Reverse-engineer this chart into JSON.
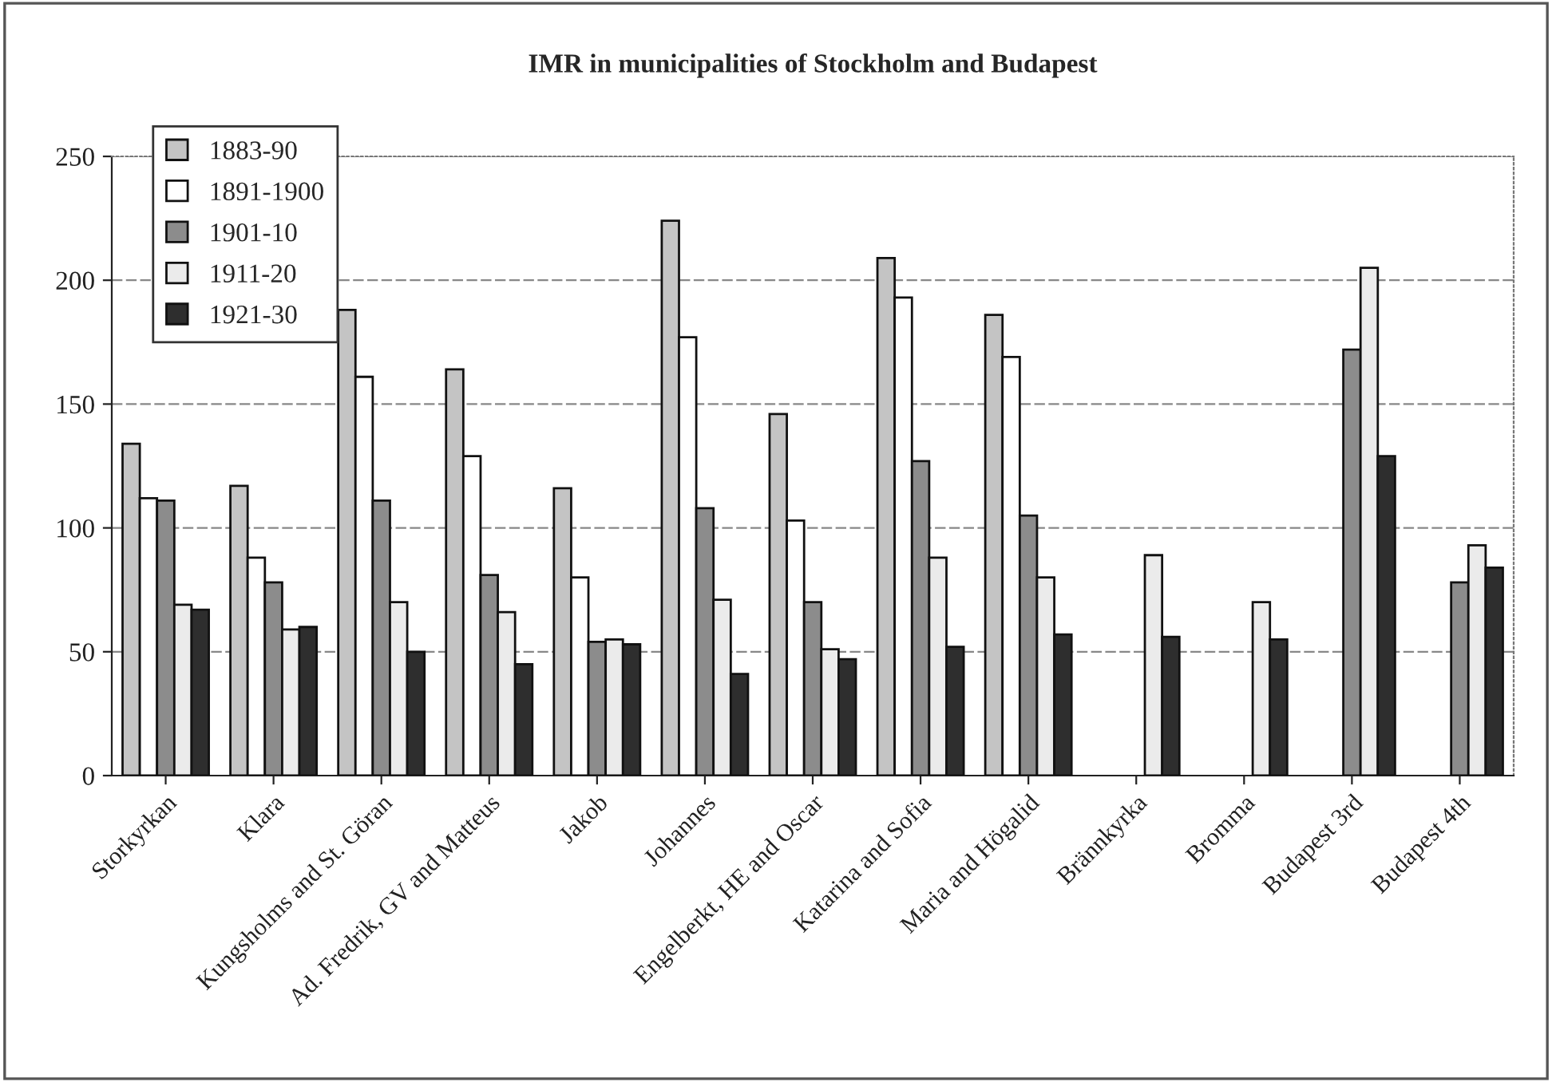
{
  "chart_data": {
    "type": "bar",
    "title": "IMR in municipalities of Stockholm and Budapest",
    "categories": [
      "Storkyrkan",
      "Klara",
      "Kungsholms and St. Göran",
      "Ad. Fredrik, GV and Matteus",
      "Jakob",
      "Johannes",
      "Engelberkt, HE and Oscar",
      "Katarina and Sofia",
      "Maria and Högalid",
      "Brännkyrka",
      "Bromma",
      "Budapest 3rd",
      "Budapest 4th"
    ],
    "series": [
      {
        "name": "1883-90",
        "color": "#c4c4c4",
        "values": [
          134,
          117,
          188,
          164,
          116,
          224,
          146,
          209,
          186,
          null,
          null,
          null,
          null
        ]
      },
      {
        "name": "1891-1900",
        "color": "#ffffff",
        "values": [
          112,
          88,
          161,
          129,
          80,
          177,
          103,
          193,
          169,
          null,
          null,
          null,
          null
        ]
      },
      {
        "name": "1901-10",
        "color": "#8c8c8c",
        "values": [
          111,
          78,
          111,
          81,
          54,
          108,
          70,
          127,
          105,
          null,
          null,
          172,
          78
        ]
      },
      {
        "name": "1911-20",
        "color": "#ebebeb",
        "values": [
          69,
          59,
          70,
          66,
          55,
          71,
          51,
          88,
          80,
          89,
          70,
          205,
          93
        ]
      },
      {
        "name": "1921-30",
        "color": "#2e2e2e",
        "values": [
          67,
          60,
          50,
          45,
          53,
          41,
          47,
          52,
          57,
          56,
          55,
          129,
          84
        ]
      }
    ],
    "ylim": [
      0,
      250
    ],
    "yticks": [
      0,
      50,
      100,
      150,
      200,
      250
    ],
    "grid": "y",
    "legend": "top left"
  }
}
